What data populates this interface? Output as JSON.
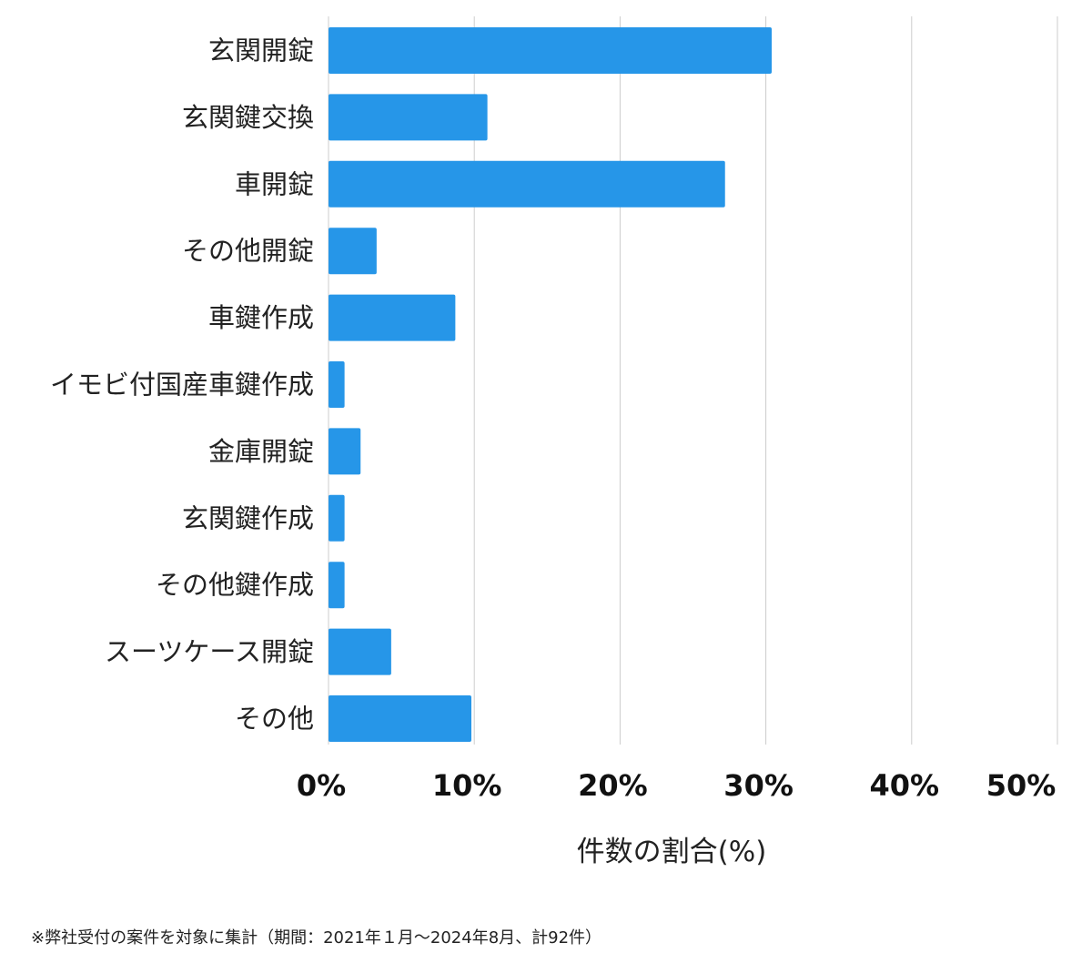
{
  "chart_data": {
    "type": "bar",
    "orientation": "horizontal",
    "categories": [
      "玄関開錠",
      "玄関鍵交換",
      "車開錠",
      "その他開錠",
      "車鍵作成",
      "イモビ付国産車鍵作成",
      "金庫開錠",
      "玄関鍵作成",
      "その他鍵作成",
      "スーツケース開錠",
      "その他"
    ],
    "values": [
      30.4,
      10.9,
      27.2,
      3.3,
      8.7,
      1.1,
      2.2,
      1.1,
      1.1,
      4.3,
      9.8
    ],
    "xlim": [
      0,
      50
    ],
    "xticks": [
      0,
      10,
      20,
      30,
      40,
      50
    ],
    "xtick_labels": [
      "0%",
      "10%",
      "20%",
      "30%",
      "40%",
      "50%"
    ],
    "xlabel": "件数の割合(%)",
    "ylabel": "",
    "title": "",
    "grid": "vertical",
    "legend": "none",
    "bar_color": "#2696e8"
  },
  "footnote": "※弊社受付の案件を対象に集計（期間：2021年１月〜2024年8月、計92件）"
}
